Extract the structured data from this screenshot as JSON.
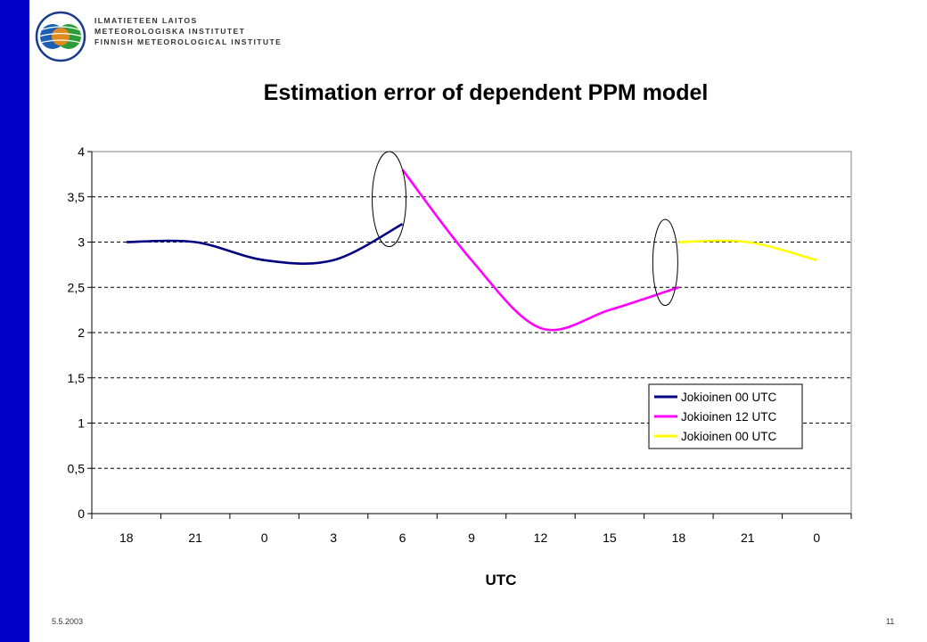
{
  "header": {
    "org_lines": [
      "ILMATIETEEN LAITOS",
      "METEOROLOGISKA INSTITUTET",
      "FINNISH METEOROLOGICAL INSTITUTE"
    ],
    "logo_icon": "fmi-logo-icon"
  },
  "slide": {
    "title": "Estimation error of dependent PPM model",
    "date": "5.5.2003",
    "page": "11"
  },
  "colors": {
    "sidebar": "#0000c8",
    "series": [
      "#000080",
      "#ff00ff",
      "#ffff00"
    ]
  },
  "chart_data": {
    "type": "line",
    "title": "Estimation error of dependent PPM model",
    "xlabel": "UTC",
    "ylabel": "",
    "categories": [
      "18",
      "21",
      "0",
      "3",
      "6",
      "9",
      "12",
      "15",
      "18",
      "21",
      "0"
    ],
    "ylim": [
      0,
      4
    ],
    "yticks": [
      "0",
      "0,5",
      "1",
      "1,5",
      "2",
      "2,5",
      "3",
      "3,5",
      "4"
    ],
    "grid": "horizontal-dashed",
    "legend_position": "right",
    "series": [
      {
        "name": "Jokioinen 00 UTC",
        "color": "#000080",
        "values": [
          3.0,
          3.0,
          2.8,
          2.8,
          3.2,
          null,
          null,
          null,
          null,
          null,
          null
        ]
      },
      {
        "name": "Jokioinen 12 UTC",
        "color": "#ff00ff",
        "values": [
          null,
          null,
          null,
          null,
          3.8,
          2.8,
          2.05,
          2.25,
          2.5,
          null,
          null
        ]
      },
      {
        "name": "Jokioinen 00 UTC",
        "color": "#ffff00",
        "values": [
          null,
          null,
          null,
          null,
          null,
          null,
          null,
          null,
          3.0,
          3.0,
          2.8
        ]
      }
    ],
    "annotations": [
      {
        "shape": "ellipse",
        "at_category_index": 4,
        "y_range": [
          2.95,
          4.0
        ]
      },
      {
        "shape": "ellipse",
        "at_category_index": 8,
        "y_range": [
          2.3,
          3.25
        ]
      }
    ]
  }
}
